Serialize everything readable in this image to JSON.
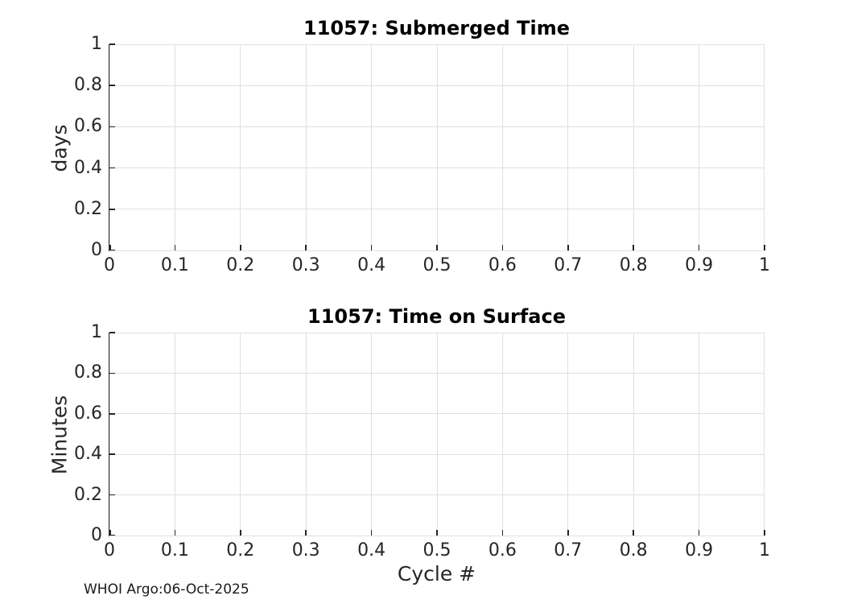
{
  "figure": {
    "background": "#ffffff",
    "footer": {
      "text": "WHOI Argo:06-Oct-2025"
    }
  },
  "style": {
    "axis_color": "#262626",
    "grid_color": "#e0e0e0",
    "title_color": "#000000"
  },
  "chart_data": [
    {
      "type": "line",
      "title": "11057: Submerged Time",
      "ylabel": "days",
      "xlim": [
        0,
        1
      ],
      "ylim": [
        0,
        1
      ],
      "grid": true,
      "box": false,
      "xtick_values": [
        0,
        0.1,
        0.2,
        0.3,
        0.4,
        0.5,
        0.6,
        0.7,
        0.8,
        0.9,
        1
      ],
      "xtick_labels": [
        "0",
        "0.1",
        "0.2",
        "0.3",
        "0.4",
        "0.5",
        "0.6",
        "0.7",
        "0.8",
        "0.9",
        "1"
      ],
      "ytick_values": [
        0,
        0.2,
        0.4,
        0.6,
        0.8,
        1
      ],
      "ytick_labels": [
        "0",
        "0.2",
        "0.4",
        "0.6",
        "0.8",
        "1"
      ],
      "series": []
    },
    {
      "type": "line",
      "title": "11057: Time on Surface",
      "xlabel": "Cycle #",
      "ylabel": "Minutes",
      "xlim": [
        0,
        1
      ],
      "ylim": [
        0,
        1
      ],
      "grid": true,
      "box": false,
      "xtick_values": [
        0,
        0.1,
        0.2,
        0.3,
        0.4,
        0.5,
        0.6,
        0.7,
        0.8,
        0.9,
        1
      ],
      "xtick_labels": [
        "0",
        "0.1",
        "0.2",
        "0.3",
        "0.4",
        "0.5",
        "0.6",
        "0.7",
        "0.8",
        "0.9",
        "1"
      ],
      "ytick_values": [
        0,
        0.2,
        0.4,
        0.6,
        0.8,
        1
      ],
      "ytick_labels": [
        "0",
        "0.2",
        "0.4",
        "0.6",
        "0.8",
        "1"
      ],
      "series": []
    }
  ]
}
